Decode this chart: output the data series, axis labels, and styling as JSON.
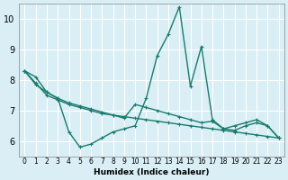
{
  "xlabel": "Humidex (Indice chaleur)",
  "ylabel": "",
  "bg_color": "#d9eff5",
  "grid_color": "#ffffff",
  "line_color": "#1a7a6e",
  "xlim": [
    -0.5,
    23.5
  ],
  "ylim": [
    5.5,
    10.5
  ],
  "yticks": [
    6,
    7,
    8,
    9,
    10
  ],
  "xtick_labels": [
    "0",
    "1",
    "2",
    "3",
    "4",
    "5",
    "6",
    "7",
    "8",
    "9",
    "10",
    "11",
    "12",
    "13",
    "14",
    "15",
    "16",
    "17",
    "18",
    "19",
    "20",
    "21",
    "22",
    "23"
  ],
  "series": [
    [
      8.3,
      8.1,
      7.6,
      7.4,
      6.3,
      5.8,
      5.9,
      6.1,
      6.3,
      6.4,
      6.5,
      7.4,
      8.8,
      9.5,
      10.4,
      7.8,
      9.1,
      6.7,
      6.4,
      6.5,
      6.6,
      6.7,
      6.5,
      6.1
    ],
    [
      8.3,
      7.9,
      7.5,
      7.35,
      7.2,
      7.1,
      7.0,
      6.9,
      6.85,
      6.8,
      6.75,
      6.7,
      6.65,
      6.6,
      6.55,
      6.5,
      6.45,
      6.4,
      6.35,
      6.3,
      6.25,
      6.2,
      6.15,
      6.1
    ],
    [
      8.3,
      7.85,
      7.6,
      7.4,
      7.25,
      7.15,
      7.05,
      6.95,
      6.85,
      6.75,
      7.2,
      7.1,
      7.0,
      6.9,
      6.8,
      6.7,
      6.6,
      6.65,
      6.4,
      6.35,
      6.5,
      6.6,
      6.5,
      6.1
    ]
  ]
}
